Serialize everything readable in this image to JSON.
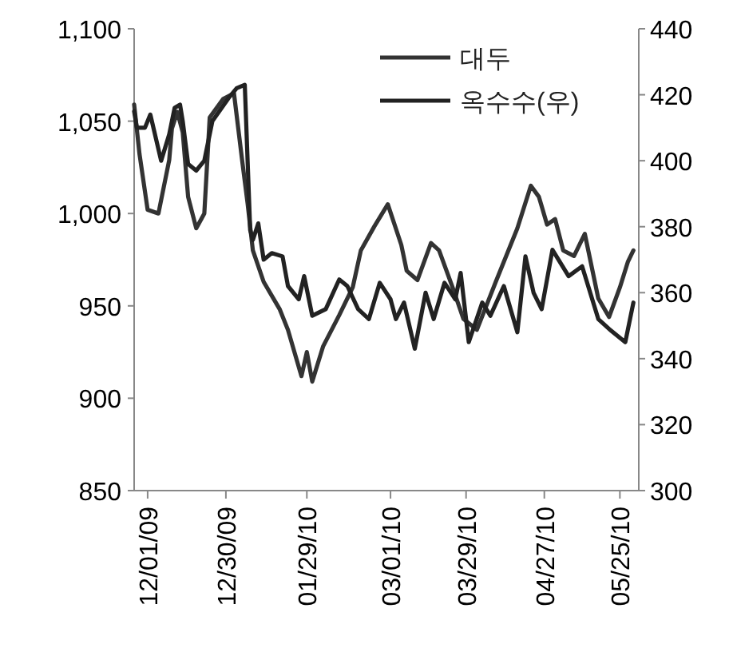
{
  "chart_data": {
    "type": "line",
    "xlim": [
      "2009-11-26",
      "2010-06-01"
    ],
    "xticks": [
      {
        "value": "2009-12-01",
        "label": "12/01/09"
      },
      {
        "value": "2009-12-30",
        "label": "12/30/09"
      },
      {
        "value": "2010-01-29",
        "label": "01/29/10"
      },
      {
        "value": "2010-03-01",
        "label": "03/01/10"
      },
      {
        "value": "2010-03-29",
        "label": "03/29/10"
      },
      {
        "value": "2010-04-27",
        "label": "04/27/10"
      },
      {
        "value": "2010-05-25",
        "label": "05/25/10"
      }
    ],
    "ylim": [
      850,
      1100
    ],
    "yticks": [
      {
        "value": 850,
        "label": "850"
      },
      {
        "value": 900,
        "label": "900"
      },
      {
        "value": 950,
        "label": "950"
      },
      {
        "value": 1000,
        "label": "1,000"
      },
      {
        "value": 1050,
        "label": "1,050"
      },
      {
        "value": 1100,
        "label": "1,100"
      }
    ],
    "y2lim": [
      300,
      440
    ],
    "y2ticks": [
      300,
      320,
      340,
      360,
      380,
      400,
      420,
      440
    ],
    "legend": "top right",
    "grid": false,
    "marker": "none",
    "line_style": "solid",
    "series": [
      {
        "name": "대두",
        "color": "#333333",
        "x": [
          "2009-11-26",
          "2009-11-28",
          "2009-12-01",
          "2009-12-05",
          "2009-12-09",
          "2009-12-10",
          "2009-12-12",
          "2009-12-14",
          "2009-12-16",
          "2009-12-19",
          "2009-12-22",
          "2009-12-24",
          "2009-12-29",
          "2010-01-02",
          "2010-01-05",
          "2010-01-07",
          "2010-01-09",
          "2010-01-13",
          "2010-01-19",
          "2010-01-22",
          "2010-01-27",
          "2010-01-29",
          "2010-01-31",
          "2010-02-04",
          "2010-02-10",
          "2010-02-15",
          "2010-02-18",
          "2010-02-23",
          "2010-02-28",
          "2010-03-05",
          "2010-03-07",
          "2010-03-11",
          "2010-03-16",
          "2010-03-19",
          "2010-03-24",
          "2010-03-28",
          "2010-04-02",
          "2010-04-09",
          "2010-04-17",
          "2010-04-22",
          "2010-04-25",
          "2010-04-28",
          "2010-05-01",
          "2010-05-04",
          "2010-05-08",
          "2010-05-12",
          "2010-05-17",
          "2010-05-21",
          "2010-05-25",
          "2010-05-28",
          "2010-05-30"
        ],
        "values": [
          1059,
          1032,
          1002,
          1000,
          1029,
          1046,
          1055,
          1044,
          1009,
          992,
          1000,
          1052,
          1062,
          1065,
          1029,
          1006,
          980,
          963,
          948,
          937,
          912,
          925,
          909,
          928,
          945,
          960,
          980,
          993,
          1005,
          983,
          969,
          964,
          984,
          980,
          960,
          943,
          937,
          963,
          992,
          1015,
          1009,
          994,
          997,
          980,
          977,
          989,
          954,
          944,
          960,
          974,
          980
        ]
      },
      {
        "name": "옥수수(우)",
        "color": "#222222",
        "axis": "y2",
        "x": [
          "2009-11-26",
          "2009-11-27",
          "2009-11-30",
          "2009-12-02",
          "2009-12-06",
          "2009-12-09",
          "2009-12-11",
          "2009-12-13",
          "2009-12-14",
          "2009-12-16",
          "2009-12-19",
          "2009-12-22",
          "2009-12-25",
          "2009-12-31",
          "2010-01-03",
          "2010-01-06",
          "2010-01-08",
          "2010-01-09",
          "2010-01-11",
          "2010-01-13",
          "2010-01-16",
          "2010-01-20",
          "2010-01-22",
          "2010-01-26",
          "2010-01-28",
          "2010-01-31",
          "2010-02-05",
          "2010-02-10",
          "2010-02-13",
          "2010-02-17",
          "2010-02-21",
          "2010-02-25",
          "2010-03-01",
          "2010-03-03",
          "2010-03-06",
          "2010-03-10",
          "2010-03-14",
          "2010-03-17",
          "2010-03-21",
          "2010-03-25",
          "2010-03-27",
          "2010-03-30",
          "2010-04-04",
          "2010-04-07",
          "2010-04-12",
          "2010-04-17",
          "2010-04-20",
          "2010-04-23",
          "2010-04-26",
          "2010-04-30",
          "2010-05-06",
          "2010-05-11",
          "2010-05-17",
          "2010-05-21",
          "2010-05-27",
          "2010-05-30"
        ],
        "values": [
          415,
          410,
          410,
          414,
          400,
          408,
          416,
          417,
          412,
          399,
          397,
          400,
          412,
          419,
          422,
          423,
          379,
          376,
          381,
          370,
          372,
          371,
          362,
          358,
          365,
          353,
          355,
          364,
          362,
          355,
          352,
          363,
          358,
          352,
          357,
          343,
          360,
          352,
          363,
          358,
          366,
          345,
          357,
          353,
          362,
          348,
          371,
          360,
          355,
          373,
          365,
          368,
          352,
          349,
          345,
          357
        ]
      }
    ]
  }
}
